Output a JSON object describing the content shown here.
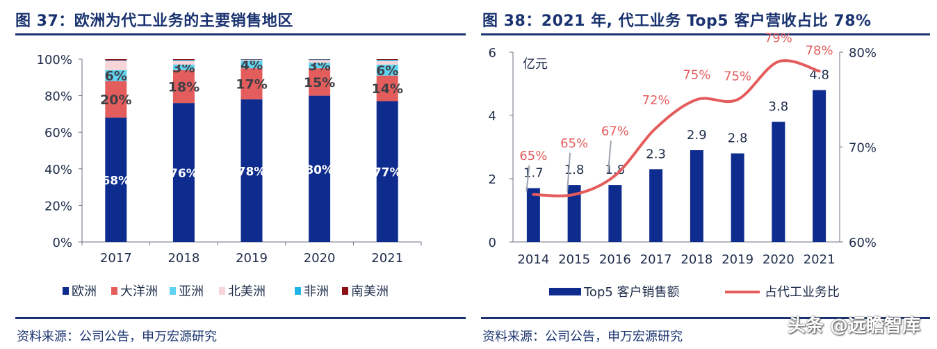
{
  "left": {
    "title": "图 37：欧洲为代工业务的主要销售地区",
    "source": "资料来源：公司公告，申万宏源研究"
  },
  "right": {
    "title": "图 38：2021 年, 代工业务 Top5 客户营收占比 78%",
    "source": "资料来源：公司公告，申万宏源研究"
  },
  "watermark": "头条 @远瞻智库",
  "chart_data": [
    {
      "type": "bar",
      "stacked": true,
      "categories": [
        "2017",
        "2018",
        "2019",
        "2020",
        "2021"
      ],
      "ylim": [
        0,
        100
      ],
      "yticks": [
        "0%",
        "20%",
        "40%",
        "60%",
        "80%",
        "100%"
      ],
      "legend_position": "bottom",
      "series": [
        {
          "name": "欧洲",
          "color": "#0e2b8e",
          "values": [
            68,
            76,
            78,
            80,
            77
          ],
          "labels": [
            "68%",
            "76%",
            "78%",
            "80%",
            "77%"
          ]
        },
        {
          "name": "大洋洲",
          "color": "#e45d5d",
          "values": [
            20,
            18,
            17,
            15,
            14
          ],
          "labels": [
            "20%",
            "18%",
            "17%",
            "15%",
            "14%"
          ]
        },
        {
          "name": "亚洲",
          "color": "#5fd3f0",
          "values": [
            6,
            3,
            4,
            3,
            6
          ],
          "labels": [
            "6%",
            "3%",
            "4%",
            "3%",
            "6%"
          ]
        },
        {
          "name": "北美洲",
          "color": "#f7d5d8",
          "values": [
            5,
            2,
            0.5,
            1.5,
            2
          ],
          "labels": []
        },
        {
          "name": "非洲",
          "color": "#1fb4e8",
          "values": [
            0.3,
            0.5,
            0.3,
            0.3,
            0.6
          ],
          "labels": []
        },
        {
          "name": "南美洲",
          "color": "#8b0f15",
          "values": [
            0.7,
            0.5,
            0.2,
            0.2,
            0.4
          ],
          "labels": []
        }
      ]
    },
    {
      "type": "bar+line",
      "categories": [
        "2014",
        "2015",
        "2016",
        "2017",
        "2018",
        "2019",
        "2020",
        "2021"
      ],
      "ylim": [
        0,
        6
      ],
      "yticks": [
        "0",
        "2",
        "4",
        "6"
      ],
      "y2lim": [
        60,
        80
      ],
      "y2ticks": [
        "60%",
        "70%",
        "80%"
      ],
      "unit": "亿元",
      "legend_position": "bottom",
      "series": [
        {
          "name": "Top5 客户销售额",
          "kind": "bar",
          "color": "#0e2b8e",
          "values": [
            1.7,
            1.8,
            1.8,
            2.3,
            2.9,
            2.8,
            3.8,
            4.8
          ],
          "labels": [
            "1.7",
            "1.8",
            "1.8",
            "2.3",
            "2.9",
            "2.8",
            "3.8",
            "4.8"
          ]
        },
        {
          "name": "占代工业务比",
          "kind": "line",
          "axis": "right",
          "color": "#e45d5d",
          "values": [
            65,
            65,
            67,
            72,
            75,
            75,
            79,
            78
          ],
          "labels": [
            "65%",
            "65%",
            "67%",
            "72%",
            "75%",
            "75%",
            "79%",
            "78%"
          ]
        }
      ]
    }
  ]
}
